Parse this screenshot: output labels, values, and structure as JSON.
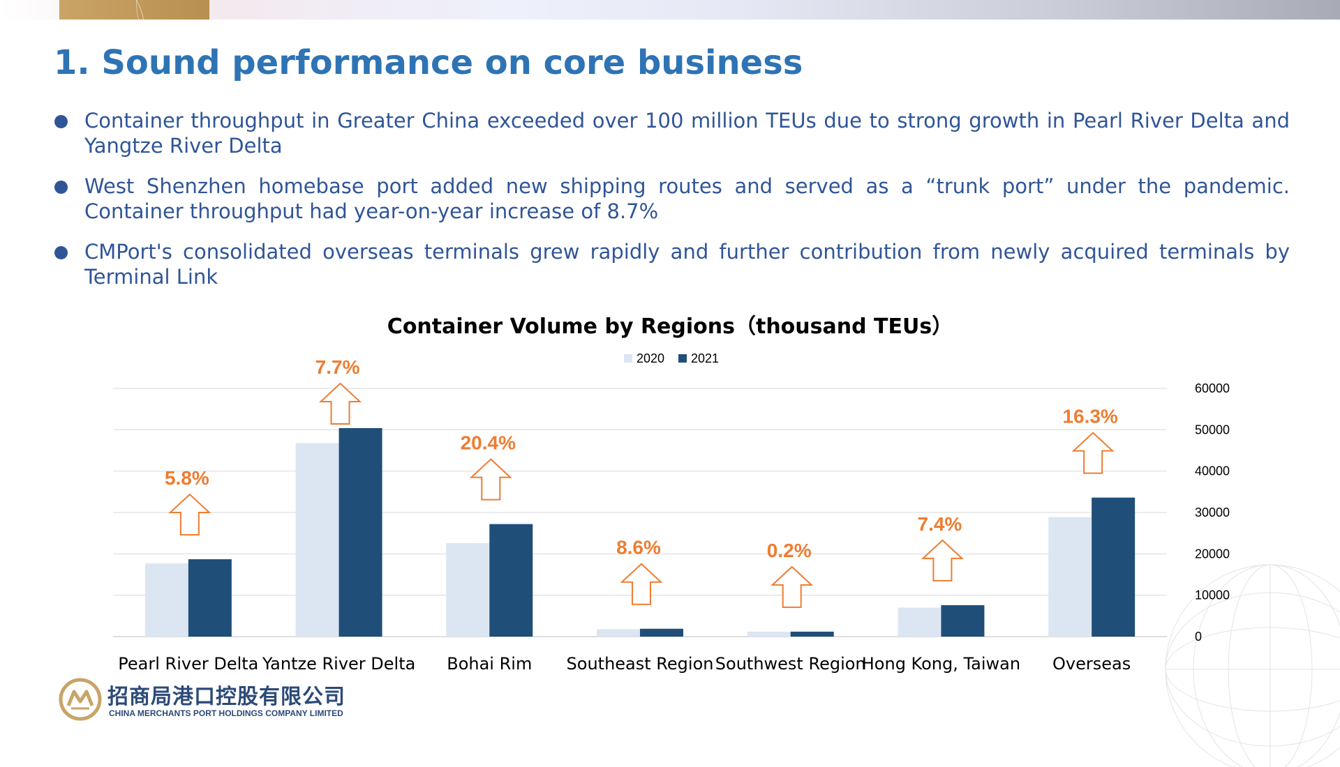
{
  "slide": {
    "title": "1. Sound performance on core business",
    "bullets": [
      "Container throughput in Greater China exceeded over 100 million TEUs due to strong growth in Pearl River Delta and Yangtze River Delta",
      "West Shenzhen homebase port added new shipping routes and served as a “trunk port” under the pandemic. Container throughput had year-on-year increase of 8.7%",
      "CMPort's consolidated overseas terminals grew rapidly and further contribution from newly acquired terminals by Terminal Link"
    ]
  },
  "logo": {
    "chinese_name": "招商局港口控股有限公司",
    "english_name": "CHINA MERCHANTS PORT HOLDINGS COMPANY LIMITED"
  },
  "chart_data": {
    "type": "bar",
    "title": "Container Volume by Regions（thousand TEUs）",
    "categories": [
      "Pearl River Delta",
      "Yantze River Delta",
      "Bohai Rim",
      "Southeast Region",
      "Southwest Region",
      "Hong Kong, Taiwan",
      "Overseas"
    ],
    "series": [
      {
        "name": "2020",
        "color": "#dce6f2",
        "values": [
          17700,
          46800,
          22600,
          1800,
          1200,
          7000,
          28900
        ]
      },
      {
        "name": "2021",
        "color": "#1f4e79",
        "values": [
          18700,
          50400,
          27200,
          1900,
          1200,
          7600,
          33600
        ]
      }
    ],
    "growth_labels": [
      "5.8%",
      "7.7%",
      "20.4%",
      "8.6%",
      "0.2%",
      "7.4%",
      "16.3%"
    ],
    "growth_color": "#ed7d31",
    "y_ticks": [
      0,
      10000,
      20000,
      30000,
      40000,
      50000,
      60000
    ],
    "ylim": [
      0,
      60000
    ],
    "y_axis_position": "right",
    "legend_position": "top",
    "grid": true
  }
}
